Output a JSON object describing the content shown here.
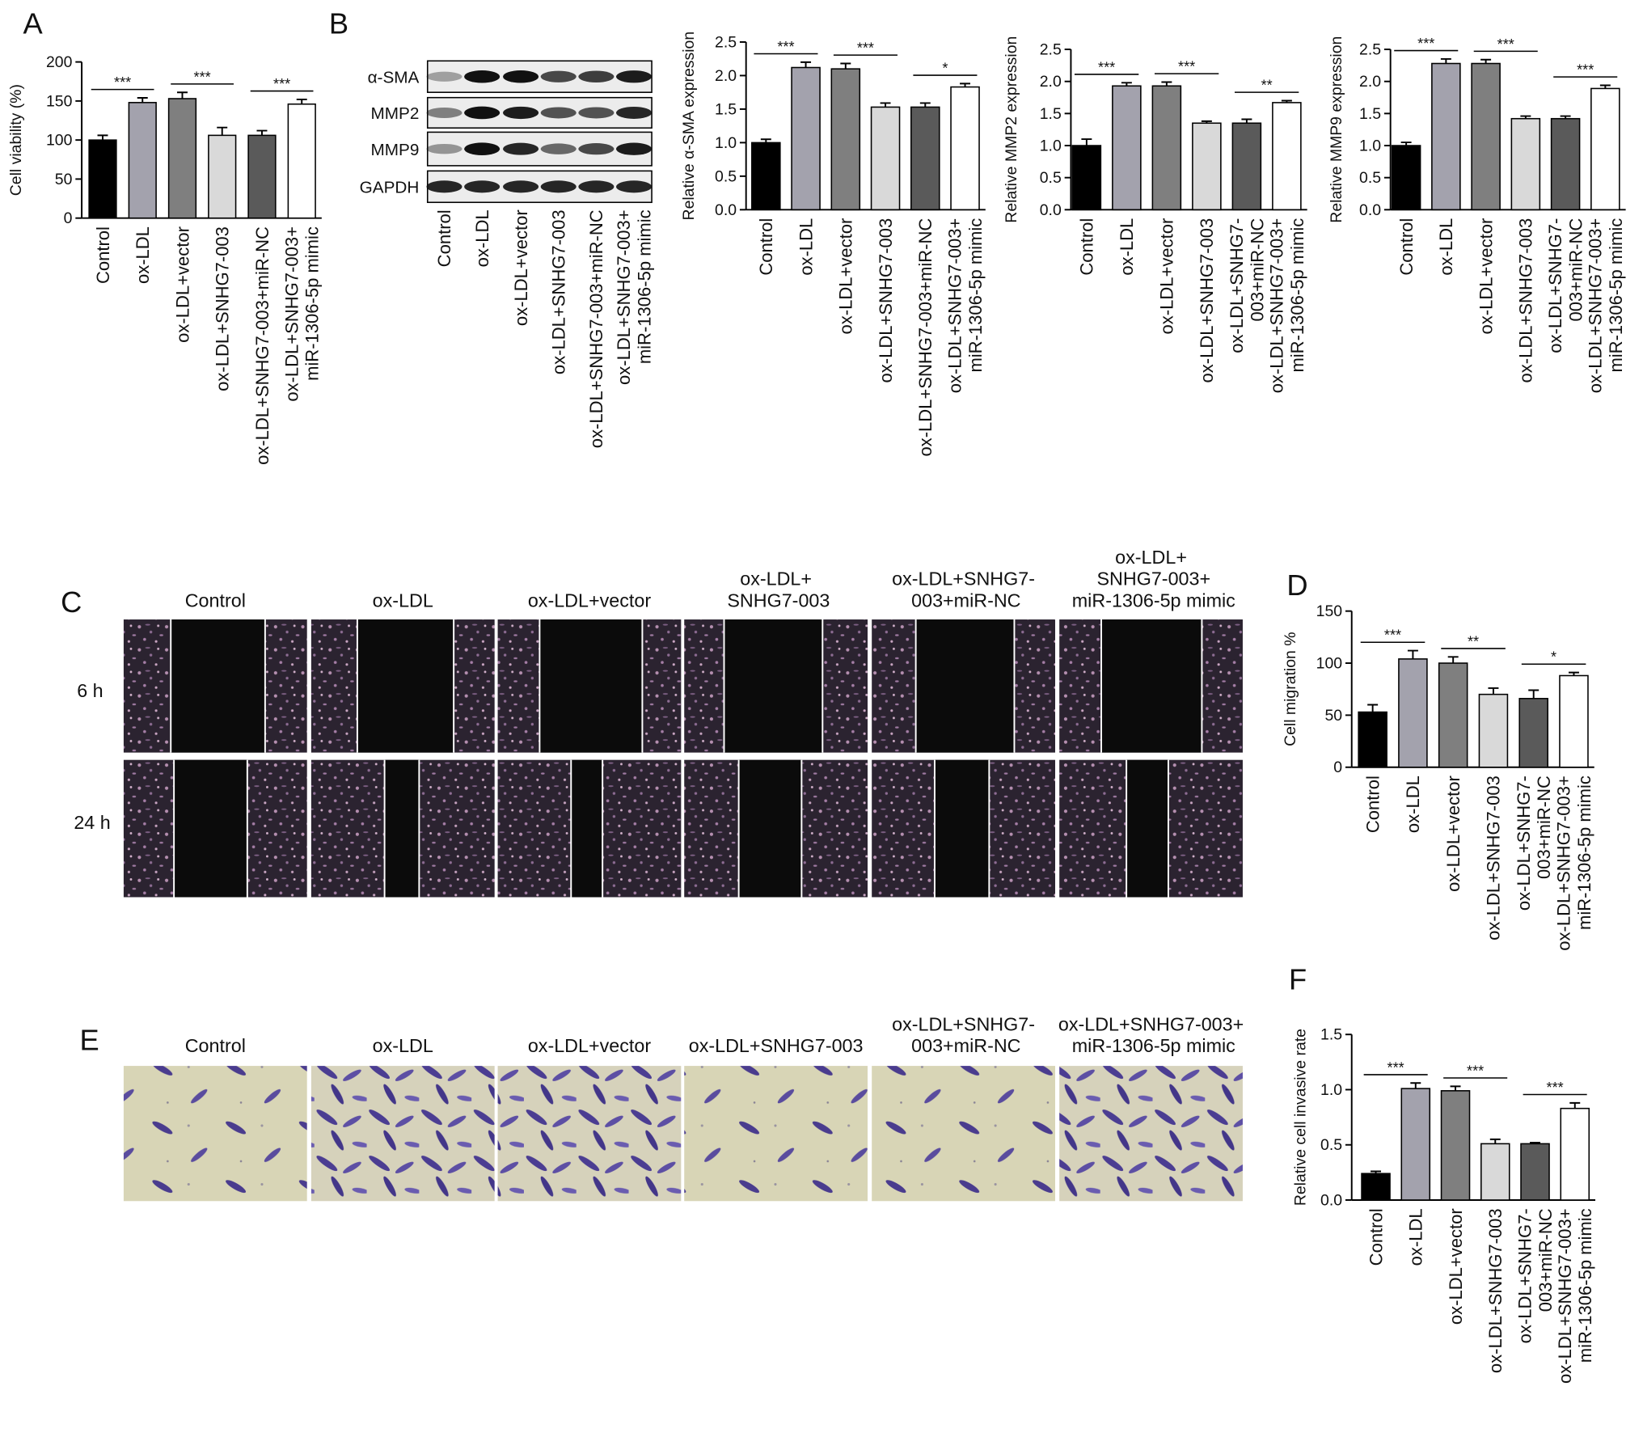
{
  "panel_labels": [
    "A",
    "B",
    "C",
    "D",
    "E",
    "F"
  ],
  "western_blot": {
    "proteins": [
      "α-SMA",
      "MMP2",
      "MMP9",
      "GAPDH"
    ],
    "lanes": [
      "Control",
      "ox-LDL",
      "ox-LDL+vector",
      "ox-LDL+SNHG7-003",
      "ox-LDL+SNHG7-003+miR-NC",
      "ox-LDL+SNHG7-003+\nmiR-1306-5p mimic"
    ]
  },
  "wound_healing": {
    "columns": [
      "Control",
      "ox-LDL",
      "ox-LDL+vector",
      "ox-LDL+\nSNHG7-003",
      "ox-LDL+SNHG7-\n003+miR-NC",
      "ox-LDL+\nSNHG7-003+\nmiR-1306-5p mimic"
    ],
    "rows": [
      "6 h",
      "24 h"
    ]
  },
  "transwell": {
    "columns": [
      "Control",
      "ox-LDL",
      "ox-LDL+vector",
      "ox-LDL+SNHG7-003",
      "ox-LDL+SNHG7-\n003+miR-NC",
      "ox-LDL+SNHG7-003+\nmiR-1306-5p mimic"
    ]
  },
  "chart_data": [
    {
      "type": "bar",
      "ylabel": "Cell viability (%)",
      "categories": [
        "Control",
        "ox-LDL",
        "ox-LDL+vector",
        "ox-LDL+SNHG7-003",
        "ox-LDL+SNHG7-003+miR-NC",
        "ox-LDL+SNHG7-003+\nmiR-1306-5p mimic"
      ],
      "values": [
        100,
        148,
        153,
        106,
        106,
        146
      ],
      "errors": [
        6,
        6,
        8,
        10,
        6,
        6
      ],
      "colors": [
        "#000000",
        "#a3a2ad",
        "#7f7f7f",
        "#d9d9d9",
        "#5a5a5a",
        "#ffffff"
      ],
      "ylim": [
        0,
        200
      ],
      "yticks": [
        0,
        50,
        100,
        150,
        200
      ],
      "annotations": [
        "***",
        "***",
        "***"
      ]
    },
    {
      "type": "bar",
      "ylabel": "Relative α-SMA expression",
      "categories": [
        "Control",
        "ox-LDL",
        "ox-LDL+vector",
        "ox-LDL+SNHG7-003",
        "ox-LDL+SNHG7-003+miR-NC",
        "ox-LDL+SNHG7-003+\nmiR-1306-5p mimic"
      ],
      "values": [
        1.0,
        2.12,
        2.1,
        1.53,
        1.53,
        1.83
      ],
      "errors": [
        0.05,
        0.08,
        0.08,
        0.06,
        0.06,
        0.05
      ],
      "colors": [
        "#000000",
        "#a3a2ad",
        "#7f7f7f",
        "#d9d9d9",
        "#5a5a5a",
        "#ffffff"
      ],
      "ylim": [
        0,
        2.5
      ],
      "yticks": [
        {
          "value": 0,
          "label": "0.0"
        },
        0.5,
        {
          "value": 1,
          "label": "1.0"
        },
        1.5,
        {
          "value": 2,
          "label": "2.0"
        },
        2.5
      ],
      "annotations": [
        "***",
        "***",
        "*"
      ]
    },
    {
      "type": "bar",
      "ylabel": "Relative MMP2 expression",
      "categories": [
        "Control",
        "ox-LDL",
        "ox-LDL+vector",
        "ox-LDL+SNHG7-003",
        "ox-LDL+SNHG7-\n003+miR-NC",
        "ox-LDL+SNHG7-003+\nmiR-1306-5p mimic"
      ],
      "values": [
        1.0,
        1.93,
        1.93,
        1.35,
        1.35,
        1.67
      ],
      "errors": [
        0.1,
        0.05,
        0.06,
        0.03,
        0.06,
        0.03
      ],
      "colors": [
        "#000000",
        "#a3a2ad",
        "#7f7f7f",
        "#d9d9d9",
        "#5a5a5a",
        "#ffffff"
      ],
      "ylim": [
        0,
        2.5
      ],
      "yticks": [
        {
          "value": 0,
          "label": "0.0"
        },
        0.5,
        {
          "value": 1,
          "label": "1.0"
        },
        1.5,
        {
          "value": 2,
          "label": "2.0"
        },
        2.5
      ],
      "annotations": [
        "***",
        "***",
        "**"
      ]
    },
    {
      "type": "bar",
      "ylabel": "Relative MMP9 expression",
      "categories": [
        "Control",
        "ox-LDL",
        "ox-LDL+vector",
        "ox-LDL+SNHG7-003",
        "ox-LDL+SNHG7-\n003+miR-NC",
        "ox-LDL+SNHG7-003+\nmiR-1306-5p mimic"
      ],
      "values": [
        1.0,
        2.28,
        2.28,
        1.42,
        1.42,
        1.89
      ],
      "errors": [
        0.05,
        0.07,
        0.06,
        0.04,
        0.04,
        0.05
      ],
      "colors": [
        "#000000",
        "#a3a2ad",
        "#7f7f7f",
        "#d9d9d9",
        "#5a5a5a",
        "#ffffff"
      ],
      "ylim": [
        0,
        2.5
      ],
      "yticks": [
        {
          "value": 0,
          "label": "0.0"
        },
        0.5,
        {
          "value": 1,
          "label": "1.0"
        },
        1.5,
        {
          "value": 2,
          "label": "2.0"
        },
        2.5
      ],
      "annotations": [
        "***",
        "***",
        "***"
      ]
    },
    {
      "type": "bar",
      "ylabel": "Cell migration %",
      "categories": [
        "Control",
        "ox-LDL",
        "ox-LDL+vector",
        "ox-LDL+SNHG7-003",
        "ox-LDL+SNHG7-\n003+miR-NC",
        "ox-LDL+SNHG7-003+\nmiR-1306-5p mimic"
      ],
      "values": [
        53,
        104,
        100,
        70,
        66,
        88
      ],
      "errors": [
        7,
        8,
        6,
        6,
        8,
        3
      ],
      "colors": [
        "#000000",
        "#a3a2ad",
        "#7f7f7f",
        "#d9d9d9",
        "#5a5a5a",
        "#ffffff"
      ],
      "ylim": [
        0,
        150
      ],
      "yticks": [
        0,
        50,
        100,
        150
      ],
      "annotations": [
        "***",
        "**",
        "*"
      ]
    },
    {
      "type": "bar",
      "ylabel": "Relative cell invasive rate",
      "categories": [
        "Control",
        "ox-LDL",
        "ox-LDL+vector",
        "ox-LDL+SNHG7-003",
        "ox-LDL+SNHG7-\n003+miR-NC",
        "ox-LDL+SNHG7-003+\nmiR-1306-5p mimic"
      ],
      "values": [
        0.24,
        1.01,
        0.99,
        0.51,
        0.51,
        0.83
      ],
      "errors": [
        0.02,
        0.05,
        0.04,
        0.04,
        0.01,
        0.05
      ],
      "colors": [
        "#000000",
        "#a3a2ad",
        "#7f7f7f",
        "#d9d9d9",
        "#5a5a5a",
        "#ffffff"
      ],
      "ylim": [
        0,
        1.5
      ],
      "yticks": [
        {
          "value": 0,
          "label": "0.0"
        },
        0.5,
        {
          "value": 1,
          "label": "1.0"
        },
        1.5
      ],
      "annotations": [
        "***",
        "***",
        "***"
      ]
    }
  ]
}
